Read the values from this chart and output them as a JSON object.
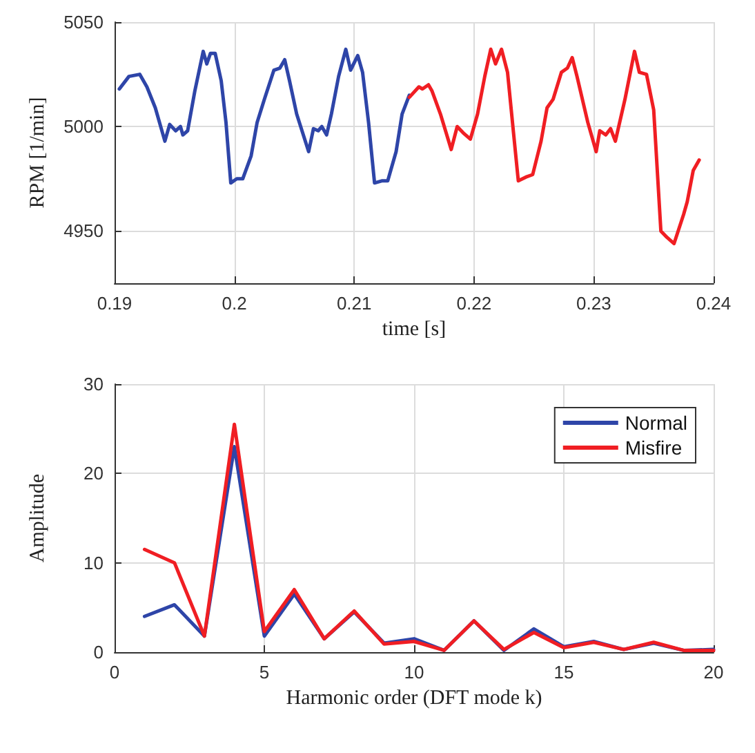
{
  "chart_data": [
    {
      "type": "line",
      "xlabel": "time [s]",
      "ylabel": "RPM [1/min]",
      "xlim": [
        0.19,
        0.24
      ],
      "xticks": [
        0.19,
        0.2,
        0.21,
        0.22,
        0.23,
        0.24
      ],
      "ylim": [
        4925,
        5050
      ],
      "yticks": [
        4950,
        5000,
        5050
      ],
      "grid": true,
      "marker": "none",
      "line_style": "solid",
      "series": [
        {
          "color": "#2e45a8",
          "x": [
            0.1904,
            0.1912,
            0.1921,
            0.1927,
            0.1934,
            0.1942,
            0.1946,
            0.1951,
            0.1955,
            0.1957,
            0.1961,
            0.1967,
            0.1974,
            0.1977,
            0.198,
            0.1984,
            0.1989,
            0.1993,
            0.1997,
            0.2002,
            0.2007,
            0.2014,
            0.2019,
            0.2025,
            0.2033,
            0.2038,
            0.2042,
            0.2046,
            0.2052,
            0.2057,
            0.2062,
            0.2066,
            0.207,
            0.2073,
            0.2077,
            0.2081,
            0.2087,
            0.2093,
            0.2097,
            0.2103,
            0.2107,
            0.2112,
            0.2117,
            0.2123,
            0.2128,
            0.2135,
            0.214,
            0.2146
          ],
          "values": [
            5018,
            5024,
            5025,
            5019,
            5009,
            4993,
            5001,
            4998,
            5000,
            4996,
            4998,
            5017,
            5036,
            5030,
            5035,
            5035,
            5022,
            5002,
            4973,
            4975,
            4975,
            4986,
            5002,
            5013,
            5027,
            5028,
            5032,
            5022,
            5006,
            4997,
            4988,
            4999,
            4998,
            5000,
            4996,
            5006,
            5024,
            5037,
            5027,
            5034,
            5026,
            5002,
            4973,
            4974,
            4974,
            4988,
            5006,
            5015
          ]
        },
        {
          "color": "#f01e23",
          "x": [
            0.2146,
            0.2154,
            0.2157,
            0.2162,
            0.2165,
            0.2172,
            0.2181,
            0.2186,
            0.2191,
            0.2197,
            0.2203,
            0.2209,
            0.2214,
            0.2218,
            0.2223,
            0.2228,
            0.2233,
            0.2237,
            0.2244,
            0.2249,
            0.2256,
            0.2261,
            0.2266,
            0.2273,
            0.2278,
            0.2282,
            0.2286,
            0.2295,
            0.2302,
            0.2305,
            0.231,
            0.2314,
            0.2318,
            0.2326,
            0.2334,
            0.2338,
            0.2344,
            0.235,
            0.2356,
            0.2361,
            0.2367,
            0.2375,
            0.2378,
            0.2383,
            0.2388
          ],
          "values": [
            5014,
            5019,
            5018,
            5020,
            5017,
            5006,
            4989,
            5000,
            4997,
            4994,
            5006,
            5024,
            5037,
            5030,
            5037,
            5026,
            4997,
            4974,
            4976,
            4977,
            4993,
            5009,
            5013,
            5026,
            5028,
            5033,
            5024,
            5002,
            4988,
            4998,
            4996,
            4999,
            4993,
            5013,
            5036,
            5026,
            5025,
            5008,
            4950,
            4947,
            4944,
            4958,
            4964,
            4979,
            4984
          ]
        }
      ]
    },
    {
      "type": "line",
      "xlabel": "Harmonic order (DFT mode k)",
      "ylabel": "Amplitude",
      "x": [
        1,
        2,
        3,
        4,
        5,
        6,
        7,
        8,
        9,
        10,
        11,
        12,
        13,
        14,
        15,
        16,
        17,
        18,
        19,
        20
      ],
      "xlim": [
        0,
        20
      ],
      "xticks": [
        0,
        5,
        10,
        15,
        20
      ],
      "ylim": [
        0,
        30
      ],
      "yticks": [
        0,
        10,
        20,
        30
      ],
      "grid": true,
      "marker": "none",
      "line_style": "solid",
      "legend": "top right",
      "series": [
        {
          "name": "Normal",
          "color": "#2e45a8",
          "values": [
            4.0,
            5.3,
            1.8,
            23,
            1.8,
            6.5,
            1.5,
            4.5,
            1.0,
            1.5,
            0.2,
            3.5,
            0.2,
            2.6,
            0.6,
            1.2,
            0.3,
            1.0,
            0.2,
            0.3
          ]
        },
        {
          "name": "Misfire",
          "color": "#f01e23",
          "values": [
            11.5,
            10,
            1.8,
            25.5,
            2.3,
            7.0,
            1.5,
            4.6,
            0.9,
            1.2,
            0.2,
            3.5,
            0.3,
            2.2,
            0.5,
            1.1,
            0.3,
            1.1,
            0.2,
            0.2
          ]
        }
      ]
    }
  ]
}
